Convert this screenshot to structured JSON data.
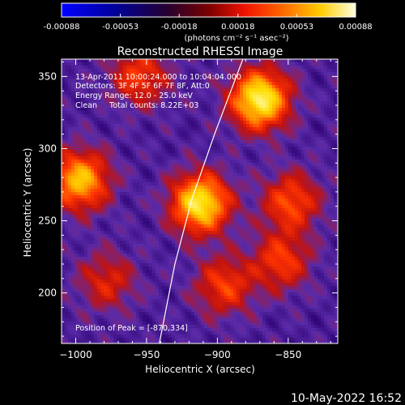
{
  "chart_data": {
    "type": "heatmap",
    "title": "Reconstructed RHESSI Image",
    "xlabel": "Heliocentric X (arcsec)",
    "ylabel": "Heliocentric Y (arcsec)",
    "colorbar": {
      "ticks": [
        "-0.00088",
        "-0.00053",
        "-0.00018",
        "0.00018",
        "0.00053",
        "0.00088"
      ],
      "range": [
        -0.00088,
        0.00088
      ],
      "units_label": "(photons cm⁻² s⁻¹ asec⁻²)"
    },
    "xlim": [
      -1010,
      -815
    ],
    "ylim": [
      165,
      362
    ],
    "x_ticks": [
      -1000,
      -950,
      -900,
      -850
    ],
    "x_tick_labels": [
      "−1000",
      "−950",
      "−900",
      "−850"
    ],
    "y_ticks": [
      200,
      250,
      300,
      350
    ],
    "y_tick_labels": [
      "200",
      "250",
      "300",
      "350"
    ],
    "annotations": {
      "time": "13-Apr-2011 10:00:24.000 to 10:04:04.000",
      "detectors": "Detectors: 3F 4F 5F 6F 7F 8F, Att:0",
      "energy": "Energy Range: 12.0 - 25.0 keV",
      "clean": "Clean     Total counts: 8.22E+03",
      "peak": "Position of Peak = [-870,334]"
    },
    "sources": [
      {
        "x": -870,
        "y": 334,
        "amp": 1.0
      },
      {
        "x": -912,
        "y": 262,
        "amp": 0.95
      },
      {
        "x": -997,
        "y": 278,
        "amp": 0.78
      },
      {
        "x": -955,
        "y": 350,
        "amp": 0.45
      },
      {
        "x": -848,
        "y": 263,
        "amp": 0.5
      },
      {
        "x": -895,
        "y": 205,
        "amp": 0.45
      },
      {
        "x": -855,
        "y": 222,
        "amp": 0.45
      },
      {
        "x": -978,
        "y": 208,
        "amp": 0.35
      }
    ],
    "limb_curve": [
      [
        -941,
        165
      ],
      [
        -930,
        220
      ],
      [
        -918,
        265
      ],
      [
        -902,
        310
      ],
      [
        -882,
        362
      ]
    ],
    "colorscale": [
      "#0000ff",
      "#00007f",
      "#2a0070",
      "#5a2aa8",
      "#c1120f",
      "#ff3300",
      "#ff9900",
      "#ffdd00",
      "#ffffbb"
    ]
  },
  "footer": {
    "timestamp": "10-May-2022 16:52"
  }
}
